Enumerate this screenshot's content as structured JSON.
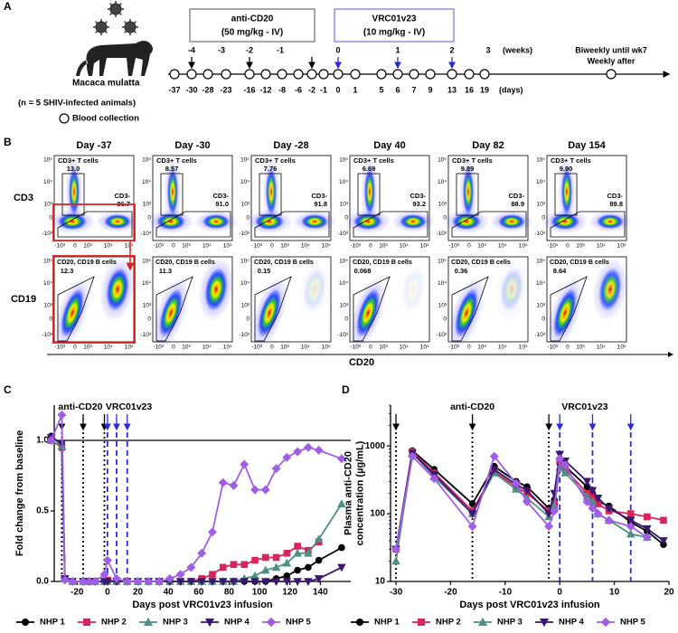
{
  "panel_labels": [
    "A",
    "B",
    "C",
    "D"
  ],
  "timeline": {
    "species": "Macaca mulatta",
    "cohort": "(n = 5 SHIV-infected animals)",
    "legend": "Blood collection",
    "boxes": [
      {
        "title": "anti-CD20",
        "dose": "(50 mg/kg - IV)"
      },
      {
        "title": "VRC01v23",
        "dose": "(10 mg/kg - IV)"
      }
    ],
    "weeks": [
      "-4",
      "-3",
      "-2",
      "-1",
      "0",
      "1",
      "2",
      "3"
    ],
    "weeks_unit": "(weeks)",
    "days": [
      "-37",
      "-30",
      "-28",
      "-23",
      "-16",
      "-12",
      "-8",
      "-6",
      "-2",
      "-1",
      "0",
      "1",
      "5",
      "6",
      "7",
      "9",
      "13",
      "16",
      "19"
    ],
    "days_unit": "(days)",
    "note": [
      "Biweekly until wk7",
      "Weekly after"
    ]
  },
  "flow": {
    "x_axis": "CD20",
    "y_axes": [
      "CD3",
      "CD19"
    ],
    "axis_ticks": [
      "10⁵",
      "10⁴",
      "10³",
      "0",
      "-10³"
    ],
    "gates": {
      "cd3_pos": "CD3+ T cells",
      "cd3_neg": "CD3-",
      "b_cells": "CD20, CD19 B cells"
    },
    "panels": [
      {
        "day": "Day -37",
        "cd3_pos": "13.0",
        "cd3_neg": "86.7",
        "b_cells": "12.3"
      },
      {
        "day": "Day -30",
        "cd3_pos": "8.57",
        "cd3_neg": "91.0",
        "b_cells": "11.3"
      },
      {
        "day": "Day -28",
        "cd3_pos": "7.76",
        "cd3_neg": "91.8",
        "b_cells": "0.15"
      },
      {
        "day": "Day 40",
        "cd3_pos": "6.69",
        "cd3_neg": "93.2",
        "b_cells": "0.068"
      },
      {
        "day": "Day 82",
        "cd3_pos": "9.89",
        "cd3_neg": "88.9",
        "b_cells": "0.36"
      },
      {
        "day": "Day 154",
        "cd3_pos": "9.90",
        "cd3_neg": "89.8",
        "b_cells": "8.64"
      }
    ]
  },
  "chart_data": [
    {
      "type": "line",
      "x_label": "Days post VRC01v23 infusion",
      "y_label": [
        "Fold change from baseline"
      ],
      "x": [
        -37,
        -30,
        -28,
        -23,
        -16,
        -12,
        -8,
        -2,
        0,
        6,
        13,
        20,
        27,
        34,
        41,
        48,
        55,
        62,
        69,
        76,
        83,
        90,
        97,
        104,
        111,
        118,
        125,
        132,
        139,
        154
      ],
      "series": [
        {
          "name": "NHP 1",
          "color": "#000000",
          "marker": "circle",
          "values": [
            1.03,
            0.97,
            0.02,
            0,
            0,
            0,
            0,
            0,
            0,
            0,
            0,
            0,
            0,
            0,
            0,
            0,
            0,
            0,
            0,
            0,
            0,
            0,
            0,
            0,
            0.02,
            0.04,
            0.08,
            0.1,
            0.15,
            0.24
          ]
        },
        {
          "name": "NHP 2",
          "color": "#d6245c",
          "marker": "square",
          "values": [
            1.0,
            0.95,
            0.02,
            0,
            0,
            0,
            0,
            0,
            0.01,
            0,
            0,
            0,
            0,
            0,
            0,
            0,
            0,
            0.02,
            0.05,
            0.1,
            0.12,
            0.12,
            0.15,
            0.17,
            0.17,
            0.2,
            0.25,
            0.22,
            0.28,
            null
          ]
        },
        {
          "name": "NHP 3",
          "color": "#4e8f86",
          "marker": "triangle-up",
          "values": [
            1.0,
            0.96,
            0.02,
            0,
            0,
            0,
            0,
            0,
            0,
            0,
            0,
            0,
            0,
            0,
            0,
            0,
            0,
            0,
            0,
            0,
            0,
            0.02,
            0.04,
            0.08,
            0.1,
            0.13,
            0.2,
            0.2,
            0.3,
            0.55
          ]
        },
        {
          "name": "NHP 4",
          "color": "#3a1870",
          "marker": "triangle-down",
          "values": [
            1.02,
            0.98,
            0.02,
            0,
            0,
            0,
            0,
            0,
            0,
            0,
            0,
            0,
            0,
            0,
            0,
            0,
            0,
            0,
            0,
            0,
            0,
            0,
            0,
            0,
            0,
            0,
            0,
            0,
            0.02,
            0.1
          ]
        },
        {
          "name": "NHP 5",
          "color": "#a05ee6",
          "marker": "diamond",
          "values": [
            1.0,
            1.18,
            0.01,
            0,
            0,
            0,
            0,
            0.05,
            0.15,
            0.02,
            0,
            0,
            0,
            0,
            0.02,
            0.05,
            0.1,
            0.2,
            0.35,
            0.7,
            0.68,
            0.83,
            0.65,
            0.65,
            0.8,
            0.88,
            0.92,
            0.95,
            0.93,
            0.87
          ]
        }
      ],
      "xlim": [
        -35,
        160
      ],
      "ylim": [
        0,
        1.25
      ],
      "xticks": [
        -20,
        0,
        20,
        40,
        60,
        80,
        100,
        120,
        140
      ],
      "yticks": [
        {
          "value": 0,
          "label": "0.0"
        },
        0.5,
        {
          "value": 1,
          "label": "1.0"
        }
      ],
      "reference_line": 1,
      "log_y": false,
      "annotations": [
        {
          "text": "anti-CD20",
          "x": [
            -30,
            -16,
            -2
          ],
          "color": "#000000",
          "style": "dotted"
        },
        {
          "text": "VRC01v23",
          "x": [
            0,
            6,
            13
          ],
          "color": "#2a2ae0",
          "style": "dashed"
        }
      ]
    },
    {
      "type": "line",
      "x_label": "Days post VRC01v23 infusion",
      "y_label": [
        "Plasma anti-CD20",
        "concentration (µg/mL)"
      ],
      "x": [
        -30,
        -27,
        -23,
        -16,
        -12,
        -8,
        -6,
        -2,
        -1,
        0,
        1,
        5,
        6,
        7,
        9,
        13,
        16,
        19
      ],
      "series": [
        {
          "name": "NHP 1",
          "color": "#000000",
          "marker": "circle",
          "values": [
            30,
            850,
            450,
            140,
            500,
            300,
            250,
            120,
            160,
            550,
            500,
            250,
            200,
            150,
            130,
            75,
            55,
            35
          ]
        },
        {
          "name": "NHP 2",
          "color": "#d6245c",
          "marker": "square",
          "values": [
            30,
            820,
            400,
            110,
            420,
            250,
            200,
            110,
            140,
            600,
            450,
            200,
            180,
            140,
            110,
            100,
            90,
            80
          ]
        },
        {
          "name": "NHP 3",
          "color": "#4e8f86",
          "marker": "triangle-up",
          "values": [
            20,
            800,
            350,
            100,
            400,
            230,
            170,
            90,
            130,
            480,
            400,
            180,
            150,
            100,
            80,
            50,
            45,
            null
          ]
        },
        {
          "name": "NHP 4",
          "color": "#3a1870",
          "marker": "triangle-down",
          "values": [
            30,
            780,
            380,
            100,
            450,
            270,
            220,
            100,
            200,
            750,
            600,
            300,
            220,
            170,
            120,
            80,
            60,
            40
          ]
        },
        {
          "name": "NHP 5",
          "color": "#a05ee6",
          "marker": "diamond",
          "values": [
            30,
            700,
            330,
            65,
            700,
            280,
            150,
            65,
            110,
            650,
            520,
            150,
            120,
            100,
            80,
            65,
            45,
            null
          ]
        }
      ],
      "xlim": [
        -31,
        20
      ],
      "ylim": [
        10,
        4000
      ],
      "xticks": [
        -30,
        -20,
        -10,
        0,
        10,
        20
      ],
      "yticks": [
        10,
        100,
        1000
      ],
      "log_y": true,
      "annotations": [
        {
          "text": "anti-CD20",
          "x": [
            -30,
            -16,
            -2
          ],
          "color": "#000000",
          "style": "dotted"
        },
        {
          "text": "VRC01v23",
          "x": [
            0,
            6,
            13
          ],
          "color": "#2a2ae0",
          "style": "dashed"
        }
      ]
    }
  ]
}
